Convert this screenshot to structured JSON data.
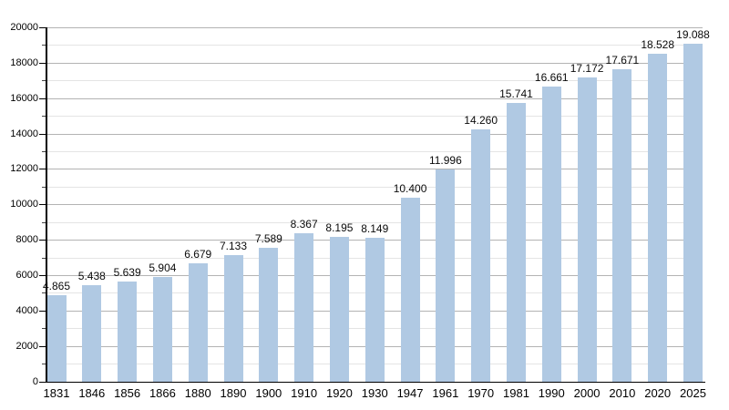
{
  "page": {
    "background_color": "#ffffff"
  },
  "chart_data": {
    "type": "bar",
    "title": "",
    "xlabel": "",
    "ylabel": "",
    "categories": [
      "1831",
      "1846",
      "1856",
      "1866",
      "1880",
      "1890",
      "1900",
      "1910",
      "1920",
      "1930",
      "1947",
      "1961",
      "1970",
      "1981",
      "1990",
      "2000",
      "2010",
      "2020",
      "2025"
    ],
    "values": [
      4865,
      5438,
      5639,
      5904,
      6679,
      7133,
      7589,
      8367,
      8195,
      8149,
      10400,
      11996,
      14260,
      15741,
      16661,
      17172,
      17671,
      18528,
      19088
    ],
    "value_labels": [
      "4.865",
      "5.438",
      "5.639",
      "5.904",
      "6.679",
      "7.133",
      "7.589",
      "8.367",
      "8.195",
      "8.149",
      "10.400",
      "11.996",
      "14.260",
      "15.741",
      "16.661",
      "17.172",
      "17.671",
      "18.528",
      "19.088"
    ],
    "ylim": [
      0,
      20000
    ],
    "y_major_step": 2000,
    "y_minor_step": 1000,
    "y_tick_labels": [
      "0",
      "2000",
      "4000",
      "6000",
      "8000",
      "10000",
      "12000",
      "14000",
      "16000",
      "18000",
      "20000"
    ],
    "grid": true,
    "legend_position": "none",
    "colors": {
      "bar_fill": "#b0c9e3",
      "major_grid": "#b3b3b3",
      "minor_grid": "#e4e4e4",
      "axis": "#000000",
      "text": "#0a0a0a"
    }
  }
}
